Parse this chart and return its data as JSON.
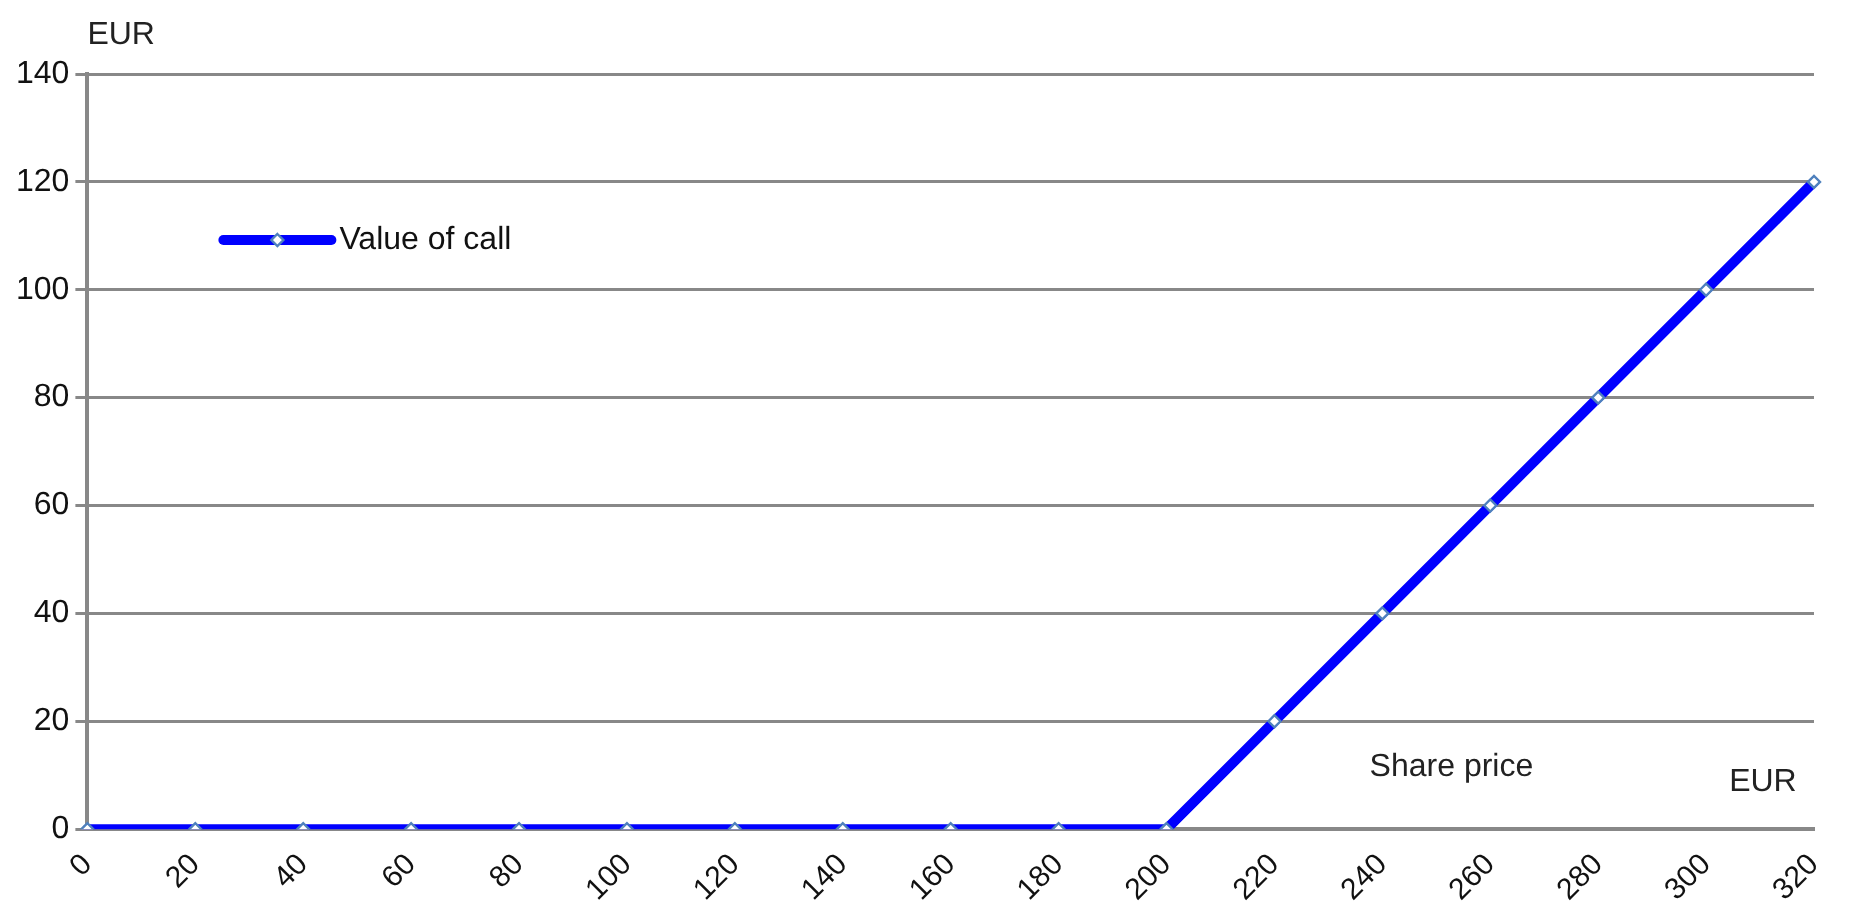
{
  "chart_data": {
    "type": "line",
    "ylabel": "EUR",
    "annotations": [
      "Share price",
      "EUR"
    ],
    "categories": [
      "0",
      "20",
      "40",
      "60",
      "80",
      "100",
      "120",
      "140",
      "160",
      "180",
      "200",
      "220",
      "240",
      "260",
      "280",
      "300",
      "320"
    ],
    "series": [
      {
        "name": "Value of call",
        "color": "#0000ff",
        "values": [
          0,
          0,
          0,
          0,
          0,
          0,
          0,
          0,
          0,
          0,
          0,
          20,
          40,
          60,
          80,
          100,
          120
        ]
      }
    ],
    "ylim": [
      0,
      140
    ],
    "yticks": [
      0,
      20,
      40,
      60,
      80,
      100,
      120,
      140
    ],
    "grid": "y",
    "legend": "top left",
    "marker": "diamond",
    "line_style": "solid"
  }
}
